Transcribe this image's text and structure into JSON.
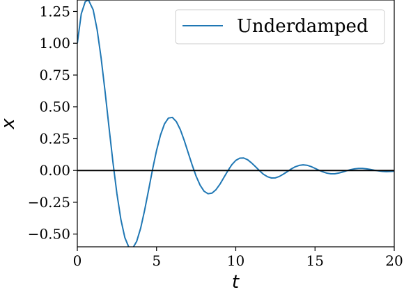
{
  "chart_data": {
    "type": "line",
    "xlabel": "t",
    "ylabel": "x",
    "xlim": [
      0,
      20
    ],
    "ylim": [
      -0.6,
      1.34
    ],
    "xticks": [
      0,
      5,
      10,
      15,
      20
    ],
    "xtick_labels": [
      "0",
      "5",
      "10",
      "15",
      "20"
    ],
    "yticks": [
      -0.5,
      -0.25,
      0.0,
      0.25,
      0.5,
      0.75,
      1.0,
      1.25
    ],
    "ytick_labels": [
      "−0.50",
      "−0.25",
      "0.00",
      "0.25",
      "0.50",
      "0.75",
      "1.00",
      "1.25"
    ],
    "grid": false,
    "legend_position": "top-right",
    "reference_line": {
      "y": 0,
      "color": "#000000"
    },
    "series": [
      {
        "name": "Underdamped",
        "color": "#1f77b4",
        "x": [
          0,
          0.25,
          0.5,
          0.7,
          1.0,
          1.25,
          1.5,
          1.75,
          2.0,
          2.25,
          2.5,
          2.75,
          3.0,
          3.25,
          3.5,
          3.75,
          4.0,
          4.25,
          4.5,
          4.75,
          5.0,
          5.25,
          5.5,
          5.75,
          6.0,
          6.25,
          6.5,
          6.75,
          7.0,
          7.25,
          7.5,
          7.75,
          8.0,
          8.25,
          8.5,
          8.75,
          9.0,
          9.25,
          9.5,
          9.75,
          10.0,
          10.25,
          10.5,
          10.75,
          11.0,
          11.25,
          11.5,
          11.75,
          12.0,
          12.25,
          12.5,
          12.75,
          13.0,
          13.25,
          13.5,
          13.75,
          14.0,
          14.25,
          14.5,
          14.75,
          15.0,
          15.25,
          15.5,
          15.75,
          16.0,
          16.25,
          16.5,
          16.75,
          17.0,
          17.25,
          17.5,
          17.75,
          18.0,
          18.25,
          18.5,
          18.75,
          19.0,
          19.25,
          19.5,
          19.75,
          20.0
        ],
        "y": [
          1.0,
          1.232,
          1.327,
          1.341,
          1.263,
          1.107,
          0.886,
          0.622,
          0.339,
          0.063,
          -0.184,
          -0.386,
          -0.528,
          -0.603,
          -0.61,
          -0.556,
          -0.452,
          -0.311,
          -0.152,
          0.01,
          0.157,
          0.279,
          0.366,
          0.412,
          0.417,
          0.384,
          0.321,
          0.235,
          0.138,
          0.042,
          -0.046,
          -0.116,
          -0.163,
          -0.183,
          -0.178,
          -0.151,
          -0.108,
          -0.055,
          -0.002,
          0.045,
          0.079,
          0.097,
          0.098,
          0.084,
          0.059,
          0.029,
          -0.002,
          -0.03,
          -0.049,
          -0.059,
          -0.058,
          -0.047,
          -0.029,
          -0.009,
          0.012,
          0.029,
          0.04,
          0.044,
          0.041,
          0.031,
          0.017,
          0.002,
          -0.011,
          -0.021,
          -0.026,
          -0.026,
          -0.02,
          -0.012,
          -0.002,
          0.007,
          0.013,
          0.016,
          0.016,
          0.013,
          0.008,
          0.002,
          -0.003,
          -0.007,
          -0.009,
          -0.008,
          -0.006
        ]
      }
    ]
  }
}
